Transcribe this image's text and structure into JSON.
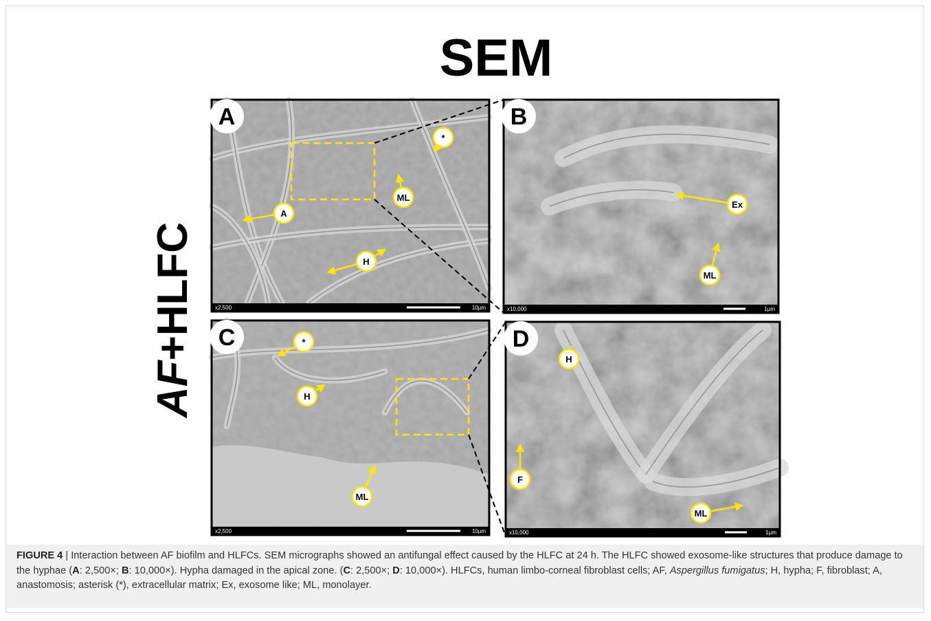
{
  "figure": {
    "title": "SEM",
    "row_label": [
      "AF",
      "+HLFC"
    ],
    "panels": [
      {
        "letter": "A",
        "magnification": "x2,500",
        "scale_bar": "10µm",
        "labels": [
          "*",
          "ML",
          "A",
          "H"
        ]
      },
      {
        "letter": "B",
        "magnification": "x10,000",
        "scale_bar": "1µm",
        "labels": [
          "Ex",
          "ML"
        ]
      },
      {
        "letter": "C",
        "magnification": "x2,500",
        "scale_bar": "10µm",
        "labels": [
          "*",
          "H",
          "ML"
        ]
      },
      {
        "letter": "D",
        "magnification": "x10,000",
        "scale_bar": "1µm",
        "labels": [
          "H",
          "F",
          "ML"
        ]
      }
    ]
  },
  "caption": [
    {
      "text": "FIGURE 4",
      "style": "bold"
    },
    {
      "text": " | Interaction between AF biofilm and HLFCs. SEM micrographs showed an antifungal effect caused by the HLFC at 24 h. The HLFC showed exosome-like structures that produce damage to the hyphae ("
    },
    {
      "text": "A",
      "style": "bold"
    },
    {
      "text": ": 2,500×; "
    },
    {
      "text": "B",
      "style": "bold"
    },
    {
      "text": ": 10,000×). Hypha damaged in the apical zone. ("
    },
    {
      "text": "C",
      "style": "bold"
    },
    {
      "text": ": 2,500×; "
    },
    {
      "text": "D",
      "style": "bold"
    },
    {
      "text": ": 10,000×). HLFCs, human limbo-corneal fibroblast cells; AF, "
    },
    {
      "text": "Aspergillus fumigatus",
      "style": "italic"
    },
    {
      "text": "; H, hypha; F, fibroblast; A, anastomosis; asterisk (*), extracellular matrix; Ex, exosome like; ML, monolayer."
    }
  ]
}
